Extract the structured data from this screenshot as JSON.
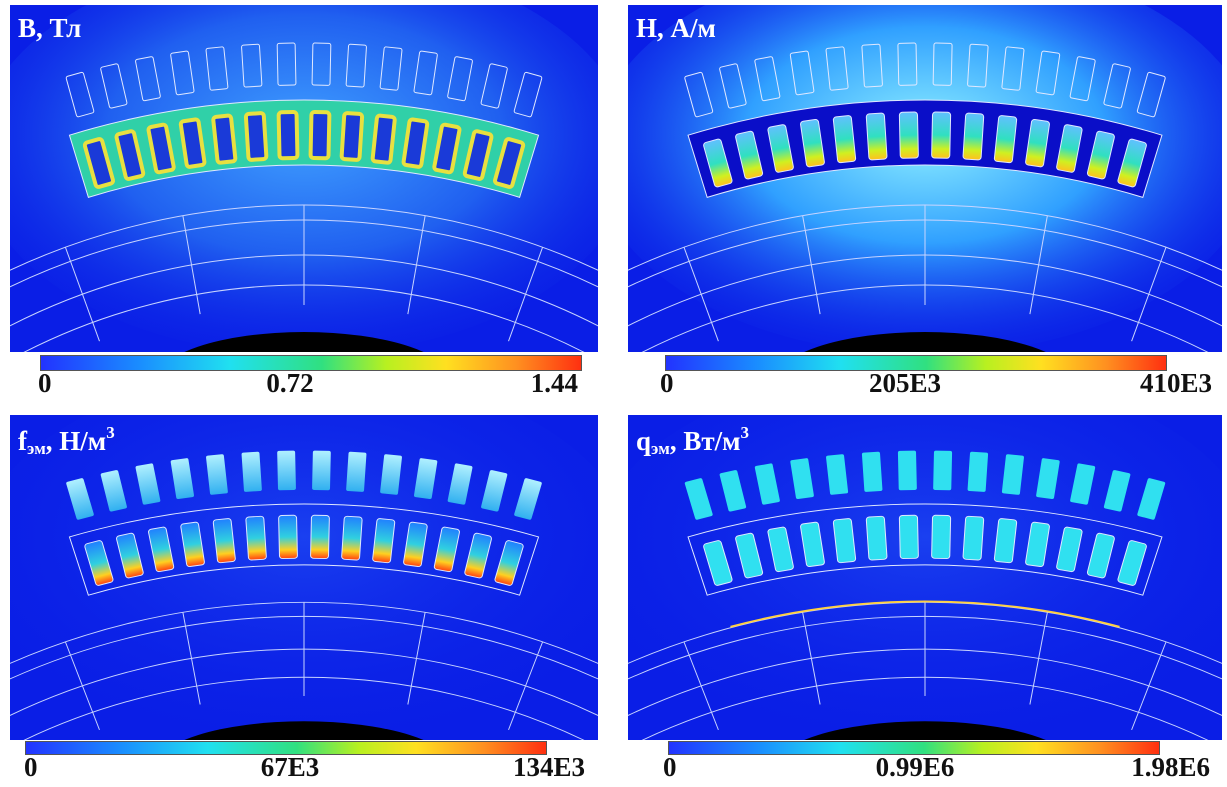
{
  "panels": [
    {
      "title": {
        "text": "B, Тл"
      },
      "colorbar_labels": [
        "0",
        "0.72",
        "1.44"
      ]
    },
    {
      "title": {
        "text": "H, А/м"
      },
      "colorbar_labels": [
        "0",
        "205E3",
        "410E3"
      ]
    },
    {
      "title": {
        "text": "f",
        "sub": "эм",
        "rest": ", Н/м",
        "sup": "3"
      },
      "colorbar_labels": [
        "0",
        "67E3",
        "134E3"
      ]
    },
    {
      "title": {
        "text": "q",
        "sub": "эм",
        "rest": ", Вт/м",
        "sup": "3"
      },
      "colorbar_labels": [
        "0",
        "0.99E6",
        "1.98E6"
      ]
    }
  ]
}
